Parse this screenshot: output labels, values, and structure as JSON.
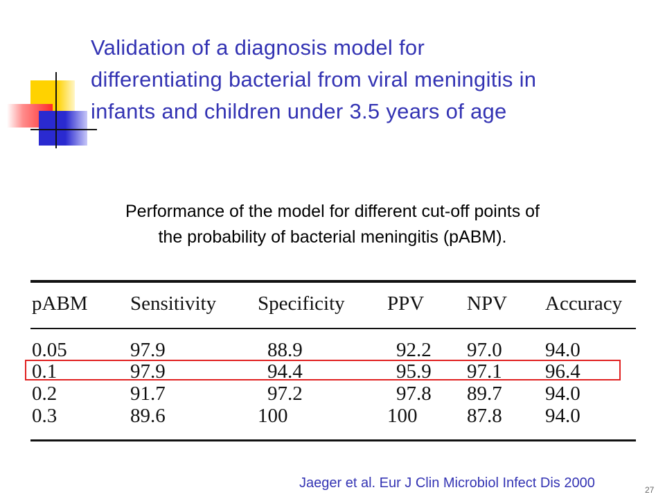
{
  "slide": {
    "title_lines": [
      "Validation of a diagnosis model for",
      "differentiating bacterial from viral meningitis in",
      "infants and children under 3.5 years of age"
    ],
    "subtitle_lines": [
      "Performance of the model for different cut-off points of",
      "the probability of bacterial meningitis (pABM)."
    ],
    "citation": "Jaeger et al. Eur J Clin Microbiol Infect Dis 2000",
    "page_number": "27",
    "highlight_color": "#e02020",
    "title_color": "#3333b3"
  },
  "table": {
    "headers": [
      "pABM",
      "Sensitivity",
      "Specificity",
      "PPV",
      "NPV",
      "Accuracy"
    ],
    "rows": [
      [
        "0.05",
        "97.9",
        "88.9",
        "92.2",
        "97.0",
        "94.0"
      ],
      [
        "0.1",
        "97.9",
        "94.4",
        "95.9",
        "97.1",
        "96.4"
      ],
      [
        "0.2",
        "91.7",
        "97.2",
        "97.8",
        "89.7",
        "94.0"
      ],
      [
        "0.3",
        "89.6",
        "100",
        "100",
        "87.8",
        "94.0"
      ]
    ],
    "highlighted_row": 1
  }
}
